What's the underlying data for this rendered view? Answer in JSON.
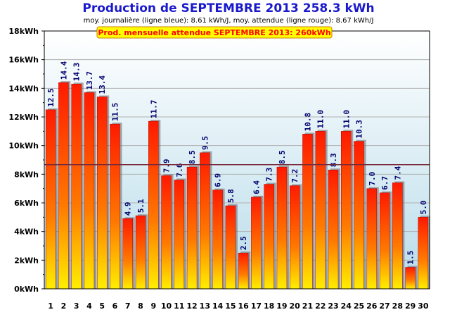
{
  "title": "Production de SEPTEMBRE 2013  258.3 kWh",
  "subtitle": "moy. journalière (ligne bleue): 8.61 kWh/J,   moy. attendue (ligne rouge): 8.67 kWh/J",
  "banner": "Prod. mensuelle attendue SEPTEMBRE 2013: 260kWh",
  "colors": {
    "title": "#1a1acc",
    "bar_top": "#ff1a00",
    "bar_bottom": "#ffee00",
    "value_label": "#00006e",
    "avg_line": "#7a2a3a",
    "banner_bg": "#ffff00",
    "banner_text": "#ff0000"
  },
  "chart_data": {
    "type": "bar",
    "categories": [
      "1",
      "2",
      "3",
      "4",
      "5",
      "6",
      "7",
      "8",
      "9",
      "10",
      "11",
      "12",
      "13",
      "14",
      "15",
      "16",
      "17",
      "18",
      "19",
      "20",
      "21",
      "22",
      "23",
      "24",
      "25",
      "26",
      "27",
      "28",
      "29",
      "30"
    ],
    "values": [
      12.5,
      14.4,
      14.3,
      13.7,
      13.4,
      11.5,
      4.9,
      5.1,
      11.7,
      7.9,
      7.6,
      8.5,
      9.5,
      6.9,
      5.8,
      2.5,
      6.4,
      7.3,
      8.5,
      7.2,
      10.8,
      11.0,
      8.3,
      11.0,
      10.3,
      7.0,
      6.7,
      7.4,
      1.5,
      5.0
    ],
    "value_labels": [
      "12.5",
      "14.4",
      "14.3",
      "13.7",
      "13.4",
      "11.5",
      "4.9",
      "5.1",
      "11.7",
      "7.9",
      "7.6",
      "8.5",
      "9.5",
      "6.9",
      "5.8",
      "2.5",
      "6.4",
      "7.3",
      "8.5",
      "7.2",
      "10.8",
      "11.0",
      "8.3",
      "11.0",
      "10.3",
      "7.0",
      "6.7",
      "7.4",
      "1.5",
      "5.0"
    ],
    "yticks": [
      "0kWh",
      "2kWh",
      "4kWh",
      "6kWh",
      "8kWh",
      "10kWh",
      "12kWh",
      "14kWh",
      "16kWh",
      "18kWh"
    ],
    "ylim": [
      0,
      18
    ],
    "daily_average": 8.61,
    "expected_average": 8.67,
    "grid": true
  }
}
